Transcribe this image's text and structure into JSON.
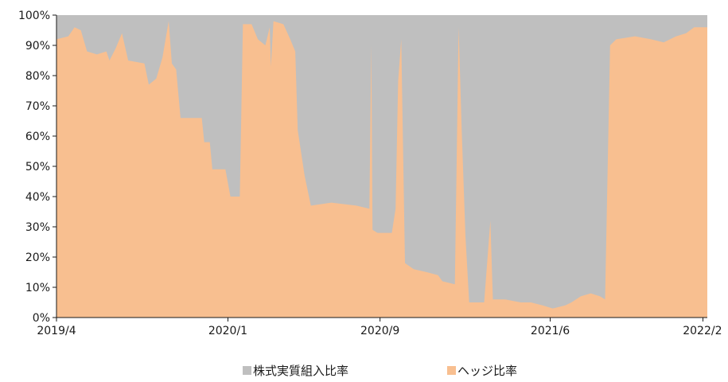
{
  "chart_data": {
    "type": "area",
    "stacked": true,
    "ylim": [
      0,
      100
    ],
    "y_ticks": [
      "0%",
      "10%",
      "20%",
      "30%",
      "40%",
      "50%",
      "60%",
      "70%",
      "80%",
      "90%",
      "100%"
    ],
    "x_ticks": [
      "2019/4",
      "2020/1",
      "2020/9",
      "2021/6",
      "2022/2"
    ],
    "x_tick_dates": [
      "2019-04-01",
      "2020-01-01",
      "2020-09-01",
      "2021-06-01",
      "2022-02-01"
    ],
    "x_range": [
      "2019-04-01",
      "2022-02-08"
    ],
    "grid": false,
    "legend_position": "bottom",
    "colors": {
      "equity": "#bfbfbf",
      "hedge": "#f8bf90"
    },
    "legend": [
      "株式実質組入比率",
      "ヘッジ比率"
    ],
    "series": [
      {
        "name": "株式実質組入比率",
        "color": "#bfbfbf",
        "values_constant": 100
      },
      {
        "name": "ヘッジ比率",
        "color": "#f8bf90",
        "points": [
          [
            "2019-04-01",
            92
          ],
          [
            "2019-04-20",
            93
          ],
          [
            "2019-04-30",
            96
          ],
          [
            "2019-05-10",
            95
          ],
          [
            "2019-05-20",
            88
          ],
          [
            "2019-06-05",
            87
          ],
          [
            "2019-06-20",
            88
          ],
          [
            "2019-06-25",
            85
          ],
          [
            "2019-07-05",
            89
          ],
          [
            "2019-07-15",
            94
          ],
          [
            "2019-07-25",
            85
          ],
          [
            "2019-08-20",
            84
          ],
          [
            "2019-08-27",
            77
          ],
          [
            "2019-09-08",
            79
          ],
          [
            "2019-09-18",
            86
          ],
          [
            "2019-09-28",
            98
          ],
          [
            "2019-10-03",
            84
          ],
          [
            "2019-10-10",
            82
          ],
          [
            "2019-10-17",
            66
          ],
          [
            "2019-11-20",
            66
          ],
          [
            "2019-11-24",
            58
          ],
          [
            "2019-12-03",
            58
          ],
          [
            "2019-12-07",
            49
          ],
          [
            "2019-12-28",
            49
          ],
          [
            "2020-01-05",
            40
          ],
          [
            "2020-01-20",
            40
          ],
          [
            "2020-01-25",
            97
          ],
          [
            "2020-02-08",
            97
          ],
          [
            "2020-02-18",
            92
          ],
          [
            "2020-03-01",
            90
          ],
          [
            "2020-03-08",
            96
          ],
          [
            "2020-03-10",
            83
          ],
          [
            "2020-03-14",
            98
          ],
          [
            "2020-03-30",
            97
          ],
          [
            "2020-04-10",
            92
          ],
          [
            "2020-04-18",
            88
          ],
          [
            "2020-04-22",
            62
          ],
          [
            "2020-05-03",
            47
          ],
          [
            "2020-05-13",
            37
          ],
          [
            "2020-06-15",
            38
          ],
          [
            "2020-07-25",
            37
          ],
          [
            "2020-08-15",
            36
          ],
          [
            "2020-08-18",
            90
          ],
          [
            "2020-08-20",
            29
          ],
          [
            "2020-08-28",
            28
          ],
          [
            "2020-09-05",
            28
          ],
          [
            "2020-09-20",
            28
          ],
          [
            "2020-09-26",
            36
          ],
          [
            "2020-09-30",
            78
          ],
          [
            "2020-10-05",
            92
          ],
          [
            "2020-10-11",
            18
          ],
          [
            "2020-10-25",
            16
          ],
          [
            "2020-11-15",
            15
          ],
          [
            "2020-12-03",
            14
          ],
          [
            "2020-12-10",
            12
          ],
          [
            "2020-12-30",
            11
          ],
          [
            "2021-01-05",
            96
          ],
          [
            "2021-01-10",
            62
          ],
          [
            "2021-01-16",
            27
          ],
          [
            "2021-01-22",
            5
          ],
          [
            "2021-02-15",
            5
          ],
          [
            "2021-02-25",
            32
          ],
          [
            "2021-03-01",
            6
          ],
          [
            "2021-03-20",
            6
          ],
          [
            "2021-04-15",
            5
          ],
          [
            "2021-05-01",
            5
          ],
          [
            "2021-05-20",
            4
          ],
          [
            "2021-06-05",
            3
          ],
          [
            "2021-06-25",
            4
          ],
          [
            "2021-07-05",
            5
          ],
          [
            "2021-07-20",
            7
          ],
          [
            "2021-08-05",
            8
          ],
          [
            "2021-08-20",
            7
          ],
          [
            "2021-08-28",
            6
          ],
          [
            "2021-09-05",
            90
          ],
          [
            "2021-09-15",
            92
          ],
          [
            "2021-10-15",
            93
          ],
          [
            "2021-11-10",
            92
          ],
          [
            "2021-11-30",
            91
          ],
          [
            "2021-12-20",
            93
          ],
          [
            "2022-01-05",
            94
          ],
          [
            "2022-01-18",
            96
          ],
          [
            "2022-02-08",
            96
          ]
        ]
      }
    ]
  }
}
